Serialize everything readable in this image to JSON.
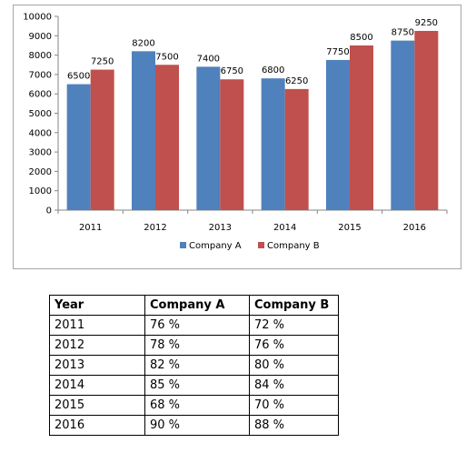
{
  "chart_data": {
    "type": "bar",
    "categories": [
      "2011",
      "2012",
      "2013",
      "2014",
      "2015",
      "2016"
    ],
    "series": [
      {
        "name": "Company A",
        "values": [
          6500,
          8200,
          7400,
          6800,
          7750,
          8750
        ],
        "color": "#4f81bd"
      },
      {
        "name": "Company B",
        "values": [
          7250,
          7500,
          6750,
          6250,
          8500,
          9250
        ],
        "color": "#c0504d"
      }
    ],
    "ylim": [
      0,
      10000
    ],
    "yticks": [
      0,
      1000,
      2000,
      3000,
      4000,
      5000,
      6000,
      7000,
      8000,
      9000,
      10000
    ],
    "grid": false,
    "legend": "bottom",
    "data_labels": true
  },
  "table": {
    "headers": [
      "Year",
      "Company A",
      "Company B"
    ],
    "rows": [
      [
        "2011",
        "76 %",
        "72 %"
      ],
      [
        "2012",
        "78 %",
        "76 %"
      ],
      [
        "2013",
        "82 %",
        "80 %"
      ],
      [
        "2014",
        "85 %",
        "84 %"
      ],
      [
        "2015",
        "68 %",
        "70 %"
      ],
      [
        "2016",
        "90 %",
        "88 %"
      ]
    ]
  }
}
